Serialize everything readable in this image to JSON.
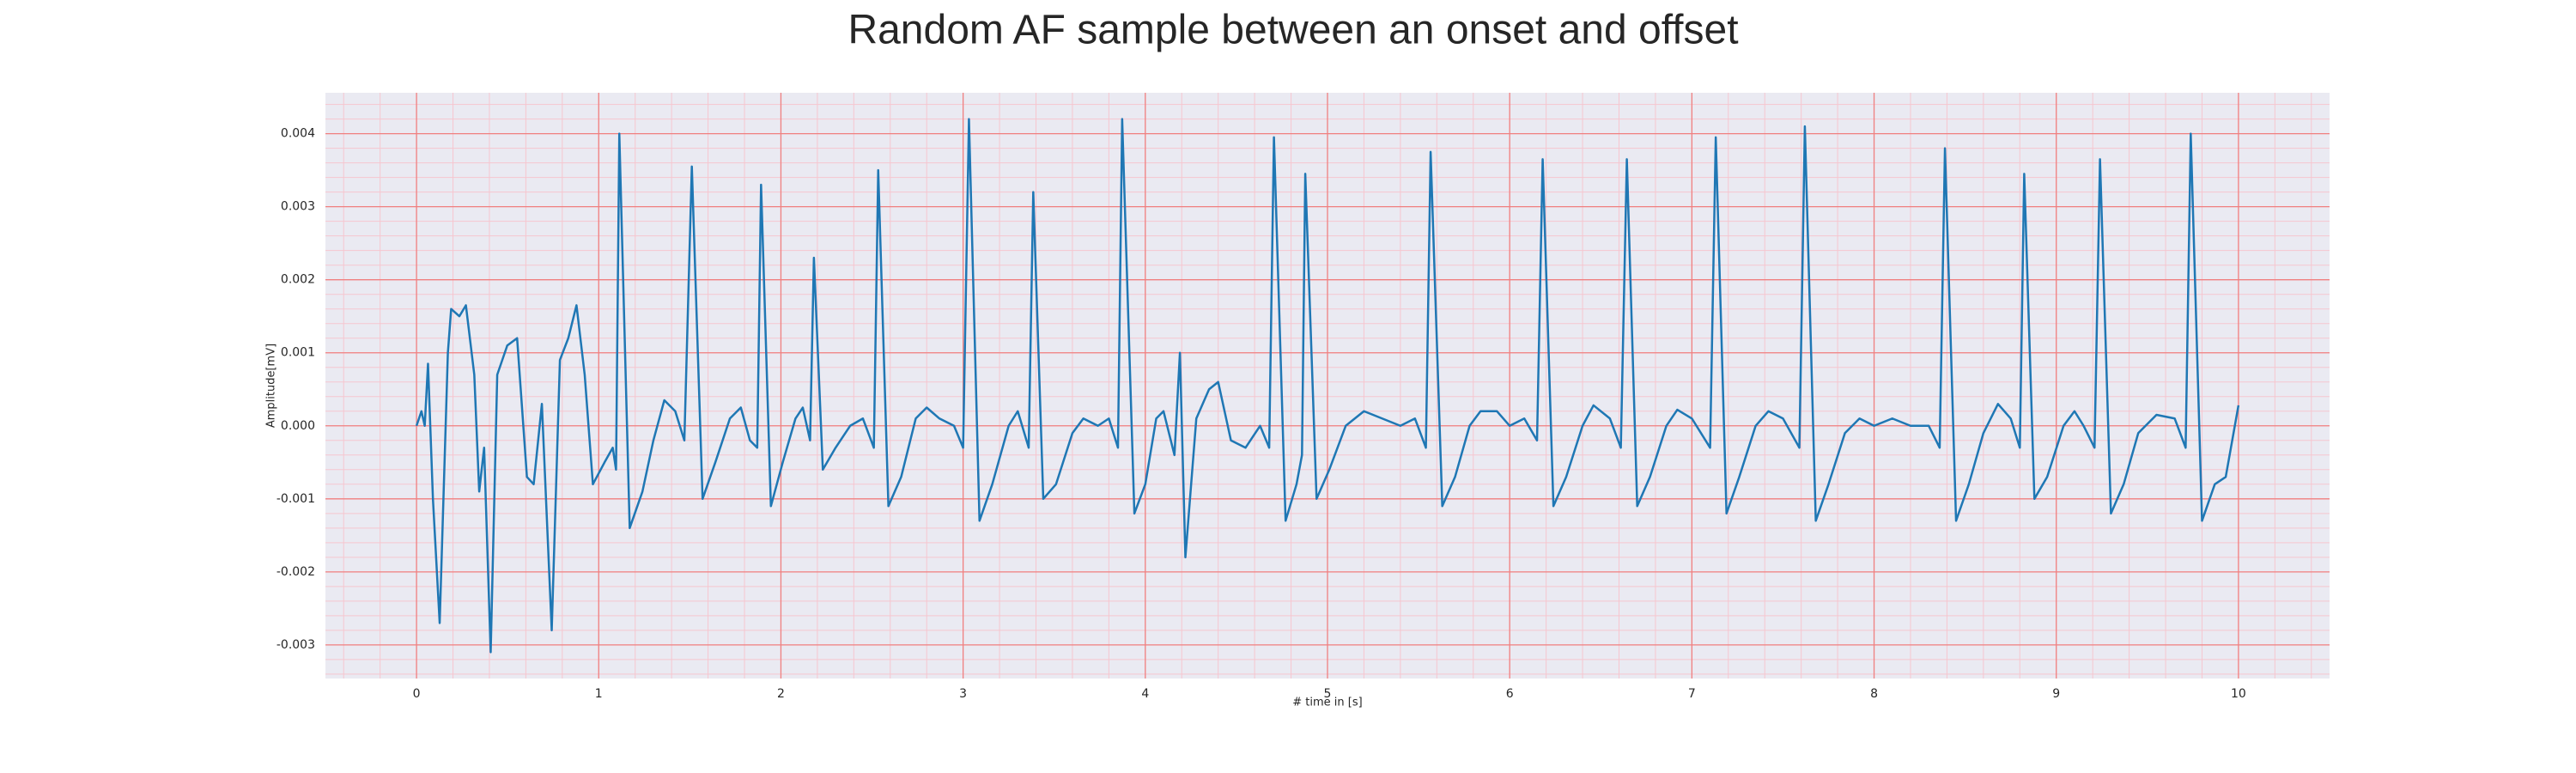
{
  "chart_data": {
    "type": "line",
    "title": "Random AF sample between an onset and offset",
    "xlabel": "# time in [s]",
    "ylabel": "Amplitude[mV]",
    "x": [
      0,
      0.027,
      0.045,
      0.063,
      0.09,
      0.127,
      0.172,
      0.19,
      0.235,
      0.271,
      0.317,
      0.344,
      0.371,
      0.407,
      0.443,
      0.498,
      0.552,
      0.606,
      0.643,
      0.688,
      0.742,
      0.787,
      0.833,
      0.878,
      0.923,
      0.968,
      1.032,
      1.077,
      1.095,
      1.113,
      1.17,
      1.24,
      1.3,
      1.36,
      1.42,
      1.47,
      1.511,
      1.57,
      1.64,
      1.72,
      1.78,
      1.83,
      1.87,
      1.891,
      1.945,
      2.01,
      2.08,
      2.12,
      2.16,
      2.181,
      2.23,
      2.3,
      2.38,
      2.45,
      2.51,
      2.534,
      2.59,
      2.66,
      2.74,
      2.8,
      2.87,
      2.95,
      3.0,
      3.032,
      3.09,
      3.16,
      3.25,
      3.3,
      3.36,
      3.385,
      3.44,
      3.51,
      3.6,
      3.66,
      3.74,
      3.8,
      3.85,
      3.873,
      3.94,
      4.0,
      4.06,
      4.1,
      4.16,
      4.19,
      4.22,
      4.28,
      4.35,
      4.4,
      4.47,
      4.55,
      4.63,
      4.68,
      4.706,
      4.77,
      4.83,
      4.86,
      4.878,
      4.94,
      5.01,
      5.1,
      5.2,
      5.3,
      5.4,
      5.48,
      5.54,
      5.566,
      5.63,
      5.7,
      5.78,
      5.84,
      5.93,
      6.0,
      6.08,
      6.15,
      6.181,
      6.24,
      6.31,
      6.4,
      6.46,
      6.55,
      6.61,
      6.643,
      6.7,
      6.77,
      6.86,
      6.92,
      7.0,
      7.1,
      7.131,
      7.19,
      7.26,
      7.35,
      7.42,
      7.5,
      7.59,
      7.62,
      7.68,
      7.75,
      7.84,
      7.92,
      8.0,
      8.1,
      8.2,
      8.3,
      8.36,
      8.389,
      8.45,
      8.52,
      8.6,
      8.68,
      8.75,
      8.8,
      8.824,
      8.88,
      8.95,
      9.04,
      9.1,
      9.15,
      9.21,
      9.24,
      9.3,
      9.37,
      9.45,
      9.55,
      9.65,
      9.71,
      9.738,
      9.8,
      9.87,
      9.93,
      10.0
    ],
    "series": [
      {
        "color": "#1f77b4",
        "values": [
          0,
          0.0002,
          0,
          0.00085,
          -0.001,
          -0.0027,
          0.001,
          0.0016,
          0.0015,
          0.00165,
          0.0007,
          -0.0009,
          -0.0003,
          -0.0031,
          0.0007,
          0.0011,
          0.0012,
          -0.0007,
          -0.0008,
          0.0003,
          -0.0028,
          0.0009,
          0.0012,
          0.00165,
          0.0007,
          -0.0008,
          -0.0005,
          -0.0003,
          -0.0006,
          0.004,
          -0.0014,
          -0.0009,
          -0.0002,
          0.00035,
          0.0002,
          -0.0002,
          0.00355,
          -0.001,
          -0.0005,
          0.0001,
          0.00025,
          -0.0002,
          -0.0003,
          0.0033,
          -0.0011,
          -0.0005,
          0.0001,
          0.00025,
          -0.0002,
          0.0023,
          -0.0006,
          -0.0003,
          0,
          0.0001,
          -0.0003,
          0.0035,
          -0.0011,
          -0.0007,
          0.0001,
          0.00025,
          0.0001,
          0,
          -0.0003,
          0.0042,
          -0.0013,
          -0.0008,
          0,
          0.0002,
          -0.0003,
          0.0032,
          -0.001,
          -0.0008,
          -0.0001,
          0.0001,
          0,
          0.0001,
          -0.0003,
          0.0042,
          -0.0012,
          -0.0008,
          0.0001,
          0.0002,
          -0.0004,
          0.001,
          -0.0018,
          0.0001,
          0.0005,
          0.0006,
          -0.0002,
          -0.0003,
          0,
          -0.0003,
          0.00395,
          -0.0013,
          -0.0008,
          -0.0004,
          0.00345,
          -0.001,
          -0.0006,
          0,
          0.0002,
          0.0001,
          0,
          0.0001,
          -0.0003,
          0.00375,
          -0.0011,
          -0.0007,
          0,
          0.0002,
          0.0002,
          0,
          0.0001,
          -0.0002,
          0.00365,
          -0.0011,
          -0.0007,
          0,
          0.00028,
          0.0001,
          -0.0003,
          0.00365,
          -0.0011,
          -0.0007,
          0,
          0.00022,
          0.0001,
          -0.0003,
          0.00395,
          -0.0012,
          -0.0007,
          0,
          0.0002,
          0.0001,
          -0.0003,
          0.0041,
          -0.0013,
          -0.0008,
          -0.0001,
          0.0001,
          0,
          0.0001,
          0,
          0,
          -0.0003,
          0.0038,
          -0.0013,
          -0.0008,
          -0.0001,
          0.0003,
          0.0001,
          -0.0003,
          0.00345,
          -0.001,
          -0.0007,
          0,
          0.0002,
          0,
          -0.0003,
          0.00365,
          -0.0012,
          -0.0008,
          -0.0001,
          0.00015,
          0.0001,
          -0.0003,
          0.004,
          -0.0013,
          -0.0008,
          -0.0007,
          0.00028
        ]
      }
    ],
    "xlim": [
      -0.5,
      10.5
    ],
    "ylim": [
      -0.00346,
      0.00456
    ],
    "xticks": [
      0,
      1,
      2,
      3,
      4,
      5,
      6,
      7,
      8,
      9,
      10
    ],
    "yticks": [
      -0.003,
      -0.002,
      -0.001,
      {
        "value": 0,
        "label": "0.000"
      },
      0.001,
      0.002,
      0.003,
      0.004
    ],
    "grid": true,
    "grid_color": "#f08080",
    "minor_grid": {
      "x_step": 0.2,
      "y_step": 0.0002,
      "color": "#f6c6cf"
    },
    "background": "#eaeaf2"
  }
}
